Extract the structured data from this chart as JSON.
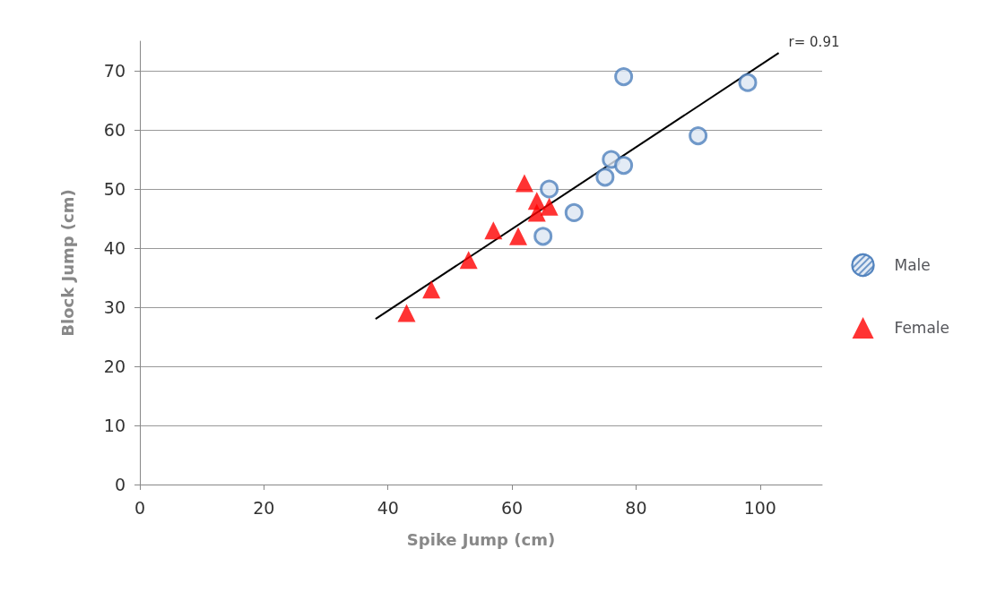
{
  "chart_data": {
    "type": "scatter",
    "xlabel": "Spike Jump (cm)",
    "ylabel": "Block Jump (cm)",
    "xlim": [
      0,
      110
    ],
    "xticks": [
      0,
      20,
      40,
      60,
      80,
      100
    ],
    "ylim": [
      0,
      75
    ],
    "yticks": [
      0,
      10,
      20,
      30,
      40,
      50,
      60,
      70
    ],
    "grid": "y",
    "legend": "right",
    "series": [
      {
        "name": "Male",
        "color": "#4f81bd",
        "marker": "circle",
        "x": [
          78,
          98,
          90,
          76,
          78,
          75,
          66,
          70,
          65
        ],
        "values": [
          69,
          68,
          59,
          55,
          54,
          52,
          50,
          46,
          42
        ]
      },
      {
        "name": "Female",
        "color": "#ff0000",
        "marker": "triangle",
        "x": [
          62,
          64,
          66,
          64,
          57,
          61,
          53,
          47,
          43
        ],
        "values": [
          51,
          48,
          47,
          46,
          43,
          42,
          38,
          33,
          29
        ]
      },
      {
        "type": "line",
        "color": "#000000",
        "marker": "none",
        "x": [
          38,
          103
        ],
        "values": [
          28,
          73
        ]
      }
    ],
    "annotations": [
      {
        "text": "r= 0.91",
        "x": 103,
        "y": 73
      }
    ]
  }
}
